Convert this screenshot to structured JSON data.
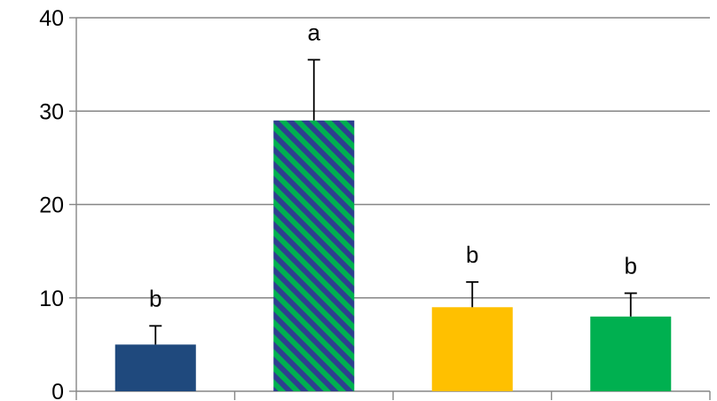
{
  "chart_data": {
    "type": "bar",
    "title": "",
    "xlabel": "",
    "ylabel": "",
    "ylim": [
      0,
      40
    ],
    "yticks": [
      "0",
      "10",
      "20",
      "30",
      "40"
    ],
    "categories": [
      "",
      "",
      "",
      ""
    ],
    "values": [
      5,
      29,
      9,
      8
    ],
    "error_upper": [
      7,
      35.5,
      11.7,
      10.5
    ],
    "annotations": [
      "b",
      "a",
      "b",
      "b"
    ],
    "grid": true,
    "legend": "none",
    "bars": [
      {
        "fill": "#1F497D",
        "pattern": "none"
      },
      {
        "fill": "#00B050",
        "pattern": "diagonal-stripes",
        "stripe_color": "#2E3F8F"
      },
      {
        "fill": "#FFC000",
        "pattern": "none"
      },
      {
        "fill": "#00B050",
        "pattern": "none"
      }
    ],
    "colors": {
      "grid": "#868686",
      "axis": "#868686",
      "error_bar": "#000000"
    }
  }
}
